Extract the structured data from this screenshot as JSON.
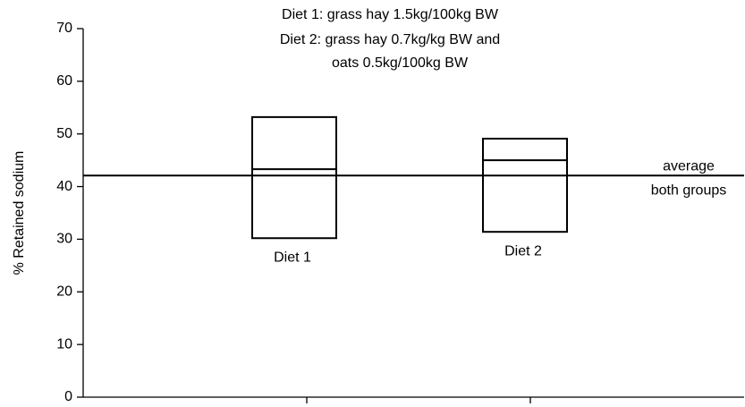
{
  "chart_data": {
    "type": "box",
    "notes": [
      "Diet 1: grass hay 1.5kg/100kg BW",
      "Diet 2: grass hay 0.7kg/kg BW and",
      "oats 0.5kg/100kg BW"
    ],
    "ylabel": "% Retained sodium",
    "categories": [
      "Diet 1",
      "Diet 2"
    ],
    "min": [
      30.2,
      31.4
    ],
    "median": [
      43.3,
      45.0
    ],
    "max": [
      53.2,
      49.1
    ],
    "reference_line": {
      "value": 42.1,
      "label": [
        "average",
        "both groups"
      ]
    },
    "color": "#000000",
    "ylim": [
      0,
      70
    ],
    "yticks": [
      0,
      10,
      20,
      30,
      40,
      50,
      60,
      70
    ]
  }
}
